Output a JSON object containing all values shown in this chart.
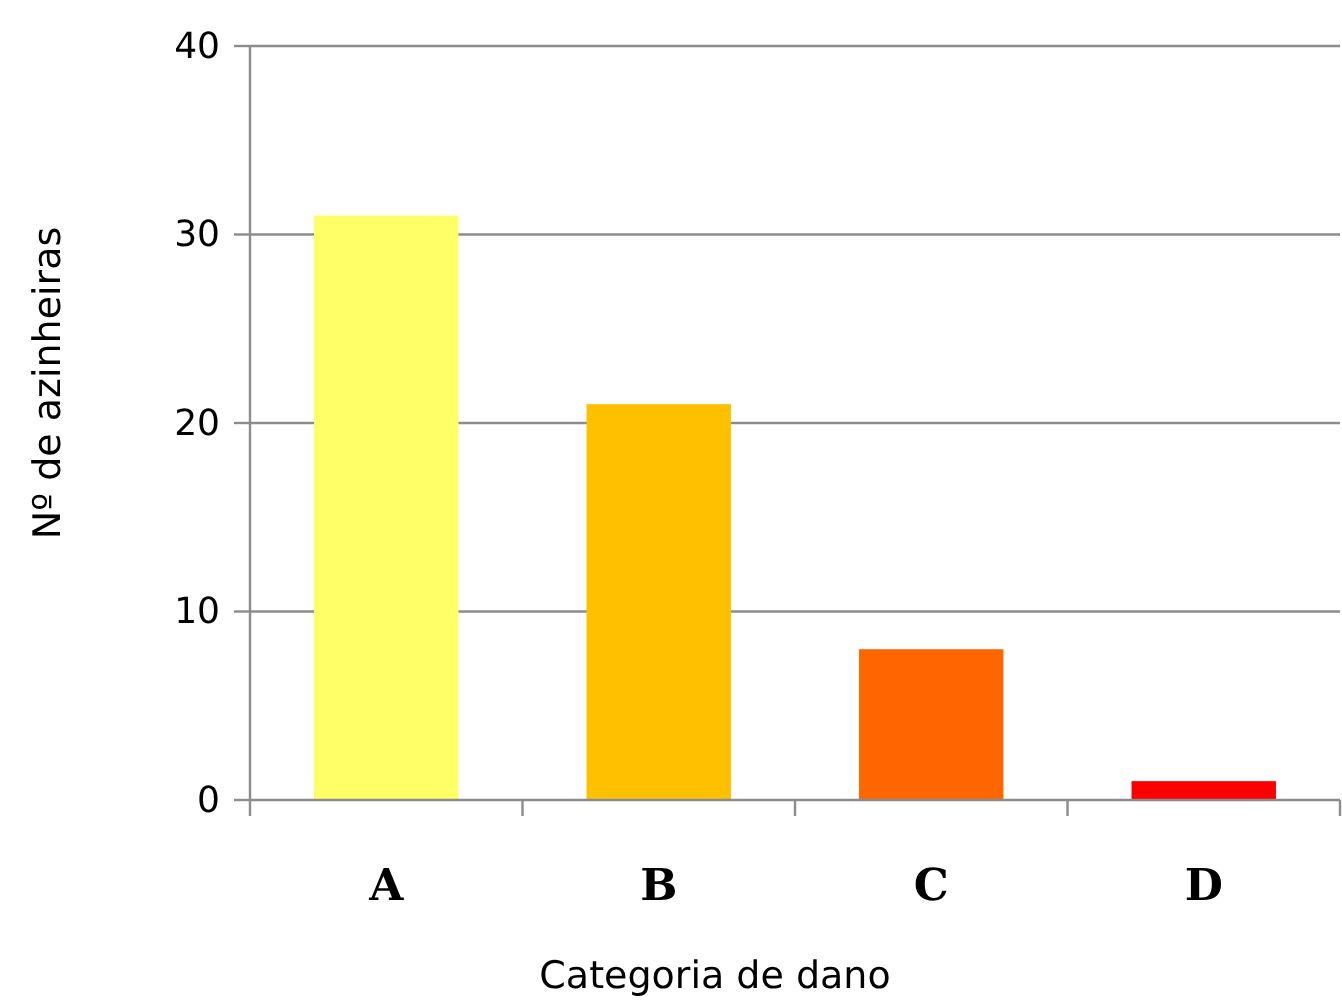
{
  "chart_data": {
    "type": "bar",
    "xlabel": "Categoria de dano",
    "ylabel": "Nº de azinheiras",
    "categories": [
      "A",
      "B",
      "C",
      "D"
    ],
    "values": [
      31,
      21,
      8,
      1
    ],
    "colors": [
      "#ffff66",
      "#ffc000",
      "#ff6600",
      "#ff0000"
    ],
    "ylim": [
      0,
      40
    ],
    "yticks": [
      0,
      10,
      20,
      30,
      40
    ],
    "grid": "y"
  }
}
